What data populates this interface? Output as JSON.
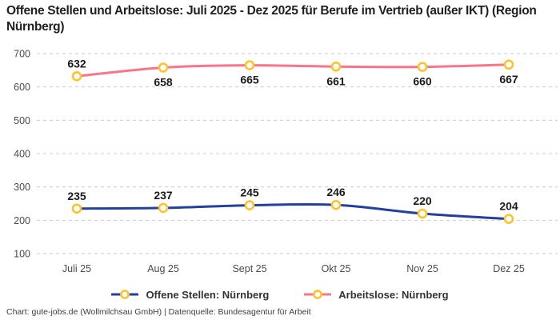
{
  "title": "Offene Stellen und Arbeitslose: Juli 2025 - Dez 2025 für Berufe im Vertrieb (außer IKT) (Region Nürnberg)",
  "footer": "Chart: gute-jobs.de (Wollmilchsau GmbH) | Datenquelle: Bundesagentur für Arbeit",
  "colors": {
    "open_positions_line": "#24409e",
    "unemployed_line": "#f97589",
    "marker_stroke": "#fdc32e",
    "marker_fill": "#ffffff",
    "grid": "#cccccc",
    "axis_text": "#4b4b4b",
    "label_text": "#1a1a1a"
  },
  "chart_data": {
    "type": "line",
    "title": "Offene Stellen und Arbeitslose: Juli 2025 - Dez 2025 für Berufe im Vertrieb (außer IKT) (Region Nürnberg)",
    "categories": [
      "Juli 25",
      "Aug 25",
      "Sept 25",
      "Okt 25",
      "Nov 25",
      "Dez 25"
    ],
    "series": [
      {
        "name": "Offene Stellen: Nürnberg",
        "values": [
          235,
          237,
          245,
          246,
          220,
          204
        ],
        "color_key": "open_positions_line",
        "label_side": [
          "above",
          "above",
          "above",
          "above",
          "above",
          "above"
        ]
      },
      {
        "name": "Arbeitslose: Nürnberg",
        "values": [
          632,
          658,
          665,
          661,
          660,
          667
        ],
        "color_key": "unemployed_line",
        "label_side": [
          "above",
          "below",
          "below",
          "below",
          "below",
          "below"
        ]
      }
    ],
    "ylim": [
      100,
      700
    ],
    "yticks": [
      100,
      200,
      300,
      400,
      500,
      600,
      700
    ],
    "grid": "dashed-horizontal",
    "legend_position": "bottom",
    "xlabel": "",
    "ylabel": ""
  }
}
